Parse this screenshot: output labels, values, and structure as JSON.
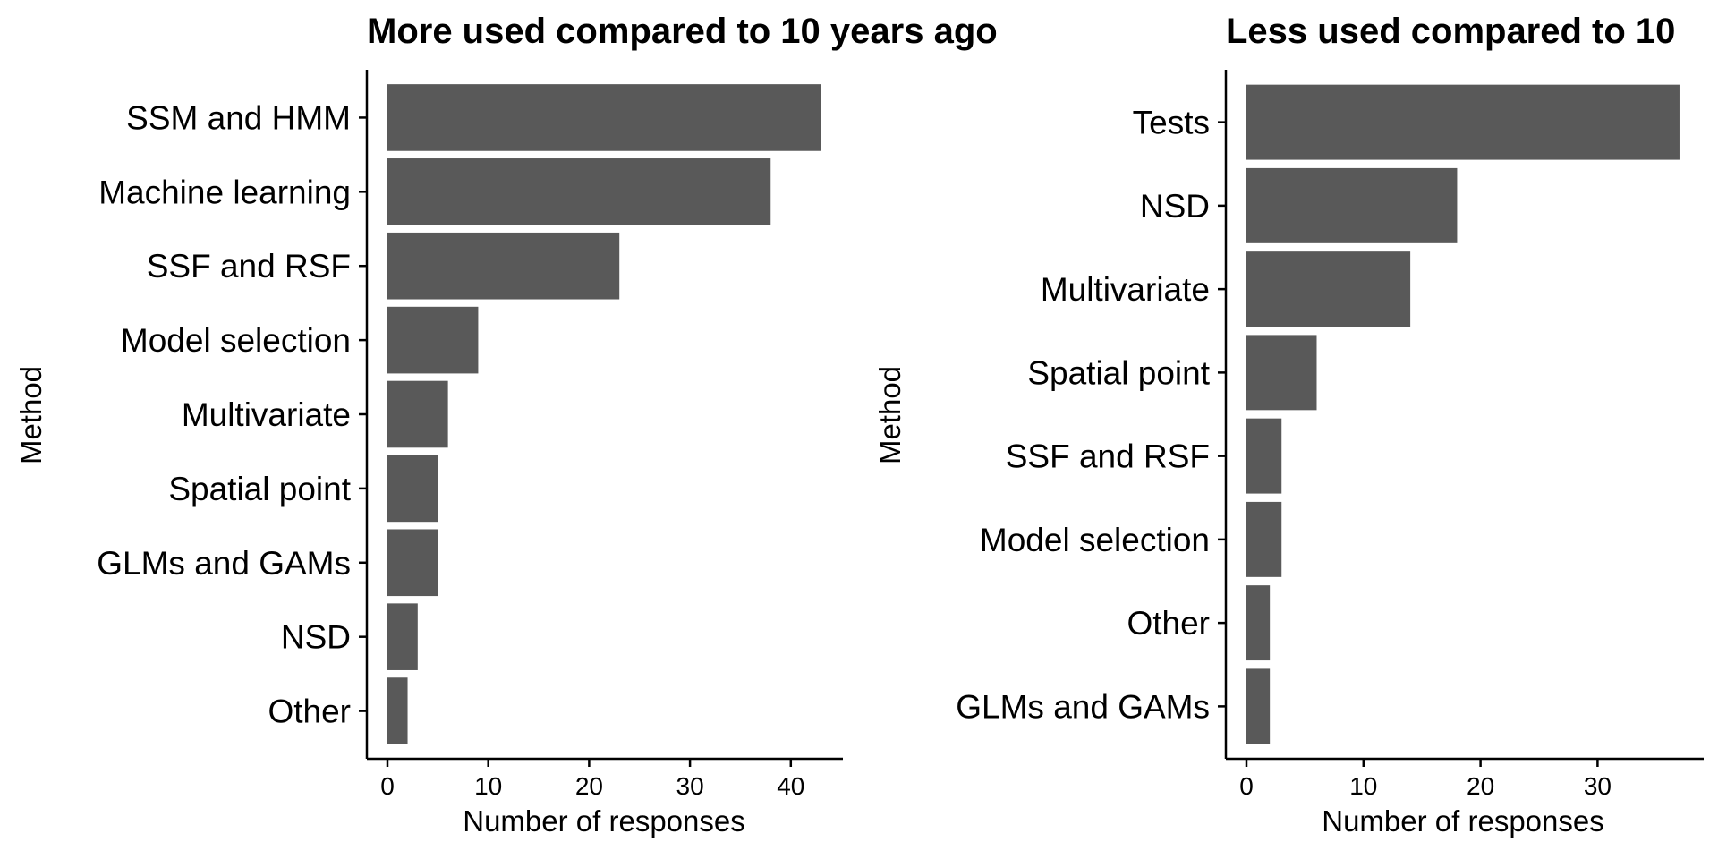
{
  "chart_data": [
    {
      "type": "bar",
      "orientation": "horizontal",
      "title": "More used compared to 10 years ago",
      "xlabel": "Number of responses",
      "ylabel": "Method",
      "categories": [
        "SSM and HMM",
        "Machine learning",
        "SSF and RSF",
        "Model selection",
        "Multivariate",
        "Spatial point",
        "GLMs and GAMs",
        "NSD",
        "Other"
      ],
      "values": [
        43,
        38,
        23,
        9,
        6,
        5,
        5,
        3,
        2
      ],
      "xlim": [
        0,
        45
      ],
      "xticks": [
        "0",
        "10",
        "20",
        "30",
        "40"
      ],
      "bar_color": "#595959",
      "grid": false,
      "legend": "none"
    },
    {
      "type": "bar",
      "orientation": "horizontal",
      "title": "Less used compared to 10",
      "xlabel": "Number of responses",
      "ylabel": "Method",
      "categories": [
        "Tests",
        "NSD",
        "Multivariate",
        "Spatial point",
        "SSF and RSF",
        "Model selection",
        "Other",
        "GLMs and GAMs"
      ],
      "values": [
        37,
        18,
        14,
        6,
        3,
        3,
        2,
        2
      ],
      "xlim": [
        0,
        38
      ],
      "xticks": [
        "0",
        "10",
        "20",
        "30"
      ],
      "bar_color": "#595959",
      "grid": false,
      "legend": "none"
    }
  ]
}
